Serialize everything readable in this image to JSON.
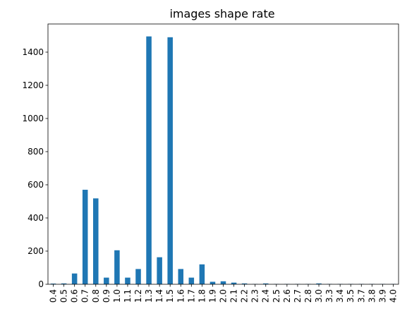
{
  "chart_data": {
    "type": "bar",
    "title": "images shape rate",
    "xlabel": "",
    "ylabel": "",
    "categories": [
      "0.4",
      "0.5",
      "0.6",
      "0.7",
      "0.8",
      "0.9",
      "1.0",
      "1.1",
      "1.2",
      "1.3",
      "1.4",
      "1.5",
      "1.6",
      "1.7",
      "1.8",
      "1.9",
      "2.0",
      "2.1",
      "2.2",
      "2.3",
      "2.4",
      "2.5",
      "2.6",
      "2.7",
      "2.8",
      "3.0",
      "3.3",
      "3.4",
      "3.5",
      "3.7",
      "3.8",
      "3.9",
      "4.0"
    ],
    "values": [
      4,
      5,
      65,
      570,
      518,
      40,
      205,
      40,
      92,
      1495,
      163,
      1490,
      92,
      40,
      120,
      15,
      18,
      10,
      5,
      2,
      5,
      2,
      2,
      2,
      2,
      5,
      2,
      2,
      2,
      2,
      2,
      2,
      2
    ],
    "ylim": [
      0,
      1570
    ],
    "yticks": [
      0,
      200,
      400,
      600,
      800,
      1000,
      1200,
      1400
    ],
    "bar_color": "#1f77b4",
    "grid": false,
    "legend": "none"
  }
}
